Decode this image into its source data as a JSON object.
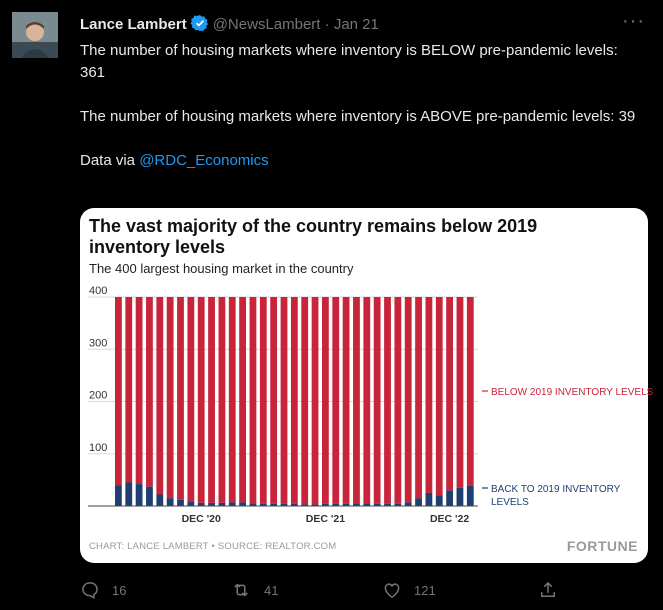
{
  "tweet": {
    "author_name": "Lance Lambert",
    "handle": "@NewsLambert",
    "separator": "·",
    "date": "Jan 21",
    "paragraph1": "The number of housing markets where inventory is BELOW pre-pandemic levels: 361",
    "paragraph2": "The number of housing markets where inventory is ABOVE pre-pandemic levels: 39",
    "data_via": "Data via ",
    "mention": "@RDC_Economics"
  },
  "card": {
    "title": "The vast majority of the country remains below 2019 inventory levels",
    "subtitle": "The 400 largest housing market in the country",
    "source": "CHART: LANCE LAMBERT • SOURCE: REALTOR.COM",
    "brand": "FORTUNE"
  },
  "chart_data": {
    "type": "bar",
    "stacked": true,
    "title": "The vast majority of the country remains below 2019 inventory levels",
    "subtitle": "The 400 largest housing market in the country",
    "ylim": [
      0,
      400
    ],
    "yticks": [
      100,
      200,
      300,
      400
    ],
    "x_labels": [
      {
        "index": 8,
        "label": "DEC '20"
      },
      {
        "index": 20,
        "label": "DEC '21"
      },
      {
        "index": 32,
        "label": "DEC '22"
      }
    ],
    "series": [
      {
        "name": "BACK TO 2019 INVENTORY LEVELS",
        "color": "#1f3f73",
        "values": [
          40,
          45,
          42,
          37,
          22,
          15,
          12,
          9,
          6,
          6,
          6,
          7,
          7,
          5,
          4,
          4,
          4,
          4,
          3,
          3,
          4,
          4,
          4,
          5,
          5,
          4,
          4,
          4,
          7,
          15,
          25,
          20,
          30,
          35,
          39
        ]
      },
      {
        "name": "BELOW 2019 INVENTORY LEVELS",
        "color": "#c8243a",
        "values": [
          360,
          355,
          358,
          363,
          378,
          385,
          388,
          391,
          394,
          394,
          394,
          393,
          393,
          395,
          396,
          396,
          396,
          396,
          397,
          397,
          396,
          396,
          396,
          395,
          395,
          396,
          396,
          396,
          393,
          385,
          375,
          380,
          370,
          365,
          361
        ]
      }
    ],
    "legend": [
      {
        "label": "BELOW 2019 INVENTORY LEVELS",
        "color": "#c8243a"
      },
      {
        "label": "BACK TO 2019 INVENTORY LEVELS",
        "color": "#1f3f73"
      }
    ]
  },
  "actions": {
    "replies": "16",
    "retweets": "41",
    "likes": "121"
  },
  "icons": [
    "verified-badge-icon",
    "more-icon",
    "reply-icon",
    "retweet-icon",
    "like-icon",
    "share-icon"
  ]
}
